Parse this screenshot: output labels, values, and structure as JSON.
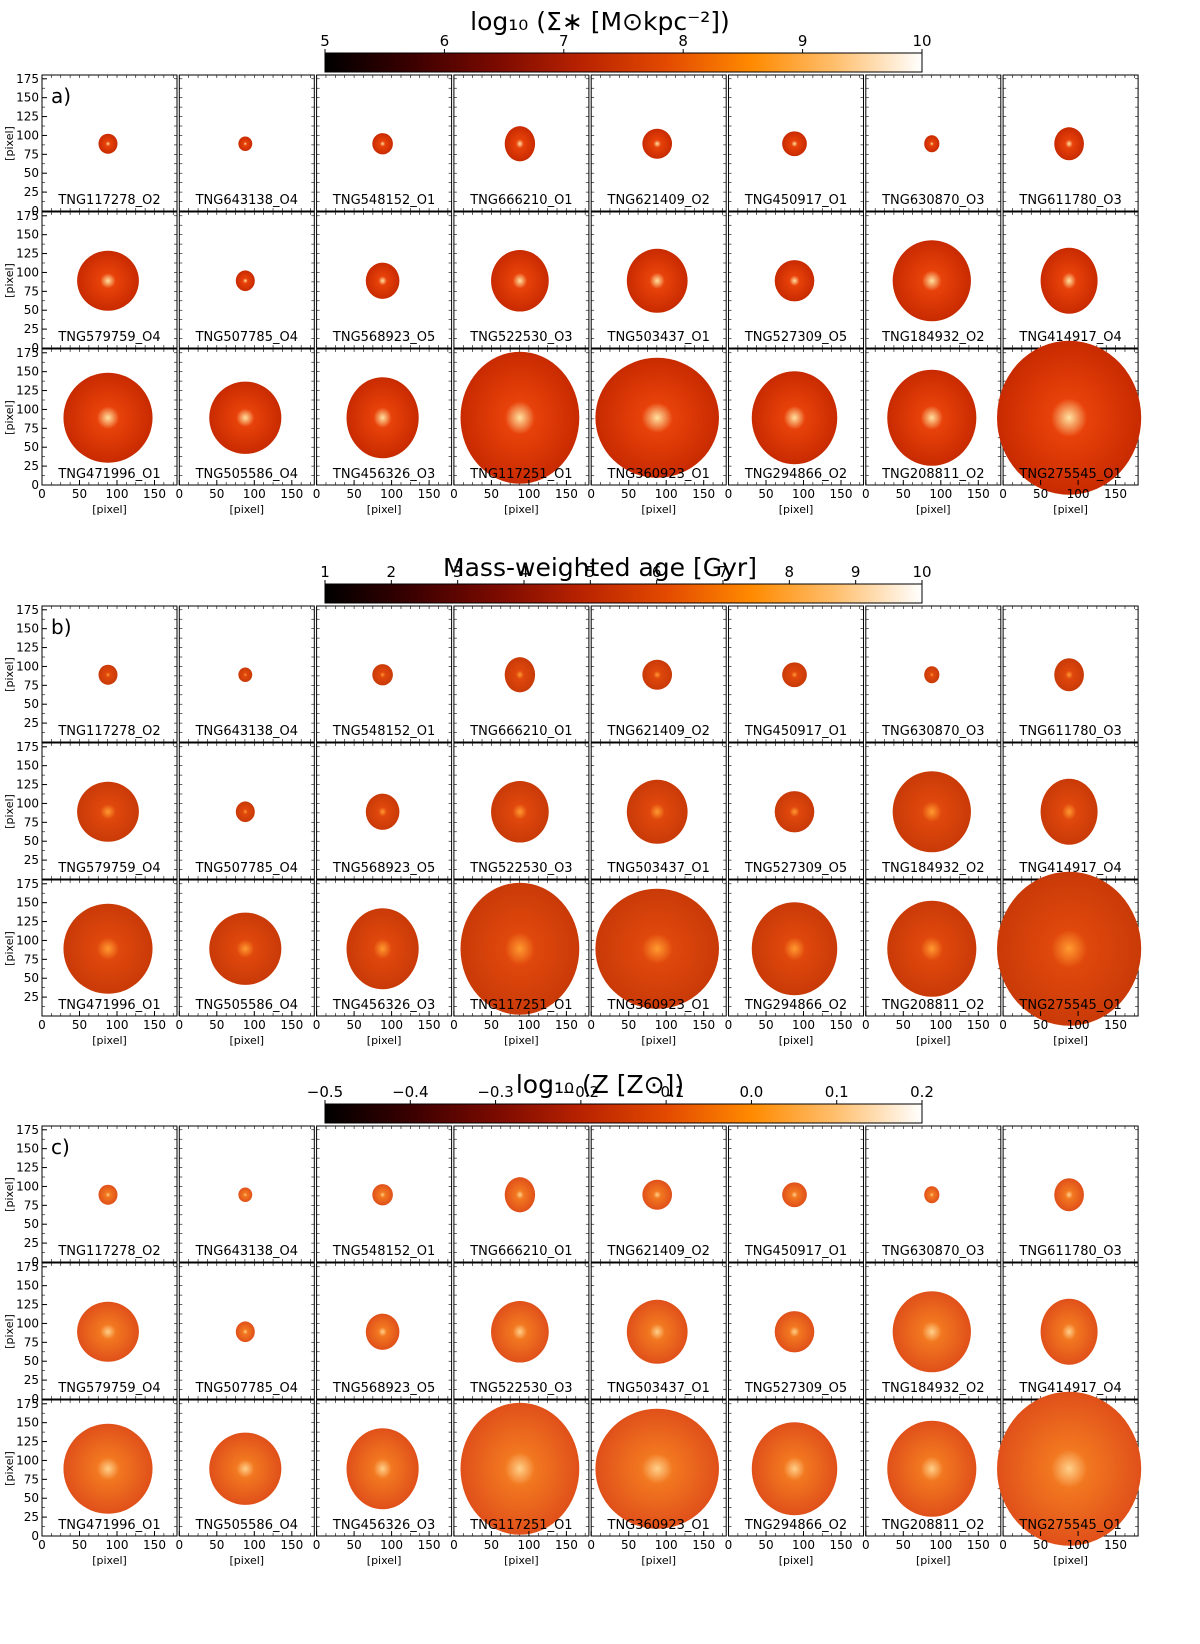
{
  "figure": {
    "galaxy_ids": [
      "TNG117278_O2",
      "TNG643138_O4",
      "TNG548152_O1",
      "TNG666210_O1",
      "TNG621409_O2",
      "TNG450917_O1",
      "TNG630870_O3",
      "TNG611780_O3",
      "TNG579759_O4",
      "TNG507785_O4",
      "TNG568923_O5",
      "TNG522530_O3",
      "TNG503437_O1",
      "TNG527309_O5",
      "TNG184932_O2",
      "TNG414917_O4",
      "TNG471996_O1",
      "TNG505586_O4",
      "TNG456326_O3",
      "TNG117251_O1",
      "TNG360923_O1",
      "TNG294866_O2",
      "TNG208811_O2",
      "TNG275545_O1"
    ],
    "grid": {
      "rows": 3,
      "cols": 8
    }
  },
  "chart_data": [
    {
      "type": "heatmap",
      "panel_label": "a)",
      "title": "log₁₀ (Σ∗ [M⊙kpc⁻²])",
      "colorbar": {
        "range": [
          5,
          10
        ],
        "ticks": [
          "5",
          "6",
          "7",
          "8",
          "9",
          "10"
        ],
        "colormap": "gist_heat"
      },
      "xlabel": "[pixel]",
      "ylabel": "[pixel]",
      "xlim": [
        0,
        180
      ],
      "ylim": [
        0,
        180
      ],
      "xticks": [
        "0",
        "50",
        "100",
        "150"
      ],
      "yticks": [
        "0",
        "25",
        "50",
        "75",
        "100",
        "125",
        "150",
        "175"
      ],
      "galaxy_sizes_px": [
        10,
        7,
        10,
        16,
        15,
        12,
        8,
        15,
        30,
        10,
        17,
        28,
        32,
        20,
        38,
        30,
        45,
        35,
        38,
        60,
        60,
        45,
        45,
        70
      ]
    },
    {
      "type": "heatmap",
      "panel_label": "b)",
      "title": "Mass-weighted age [Gyr]",
      "colorbar": {
        "range": [
          1,
          10
        ],
        "ticks": [
          "1",
          "2",
          "3",
          "4",
          "5",
          "6",
          "7",
          "8",
          "9",
          "10"
        ],
        "colormap": "gist_heat"
      },
      "xlabel": "[pixel]",
      "ylabel": "[pixel]",
      "xlim": [
        0,
        180
      ],
      "ylim": [
        0,
        180
      ],
      "xticks": [
        "0",
        "50",
        "100",
        "150"
      ],
      "yticks": [
        "25",
        "50",
        "75",
        "100",
        "125",
        "150",
        "175"
      ],
      "galaxy_sizes_px": [
        10,
        7,
        10,
        16,
        15,
        12,
        8,
        15,
        30,
        10,
        17,
        28,
        32,
        20,
        38,
        30,
        45,
        35,
        38,
        60,
        60,
        45,
        45,
        70
      ]
    },
    {
      "type": "heatmap",
      "panel_label": "c)",
      "title": "log₁₀ (Z [Z⊙])",
      "colorbar": {
        "range": [
          -0.5,
          0.2
        ],
        "ticks": [
          "−0.5",
          "−0.4",
          "−0.3",
          "−0.2",
          "−0.1",
          "0.0",
          "0.1",
          "0.2"
        ],
        "colormap": "gist_heat"
      },
      "xlabel": "[pixel]",
      "ylabel": "[pixel]",
      "xlim": [
        0,
        180
      ],
      "ylim": [
        0,
        180
      ],
      "xticks": [
        "0",
        "50",
        "100",
        "150"
      ],
      "yticks": [
        "0",
        "25",
        "50",
        "75",
        "100",
        "125",
        "150",
        "175"
      ],
      "galaxy_sizes_px": [
        10,
        7,
        10,
        16,
        15,
        12,
        8,
        15,
        30,
        10,
        17,
        28,
        32,
        20,
        38,
        30,
        45,
        35,
        38,
        60,
        60,
        45,
        45,
        70
      ]
    }
  ],
  "colors": {
    "cmap": [
      "#000000",
      "#3a0000",
      "#7a0a00",
      "#b82200",
      "#e34a00",
      "#ff8a00",
      "#ffc070",
      "#ffffff"
    ],
    "galaxy_a_core": "#ffe2a0",
    "galaxy_a_mid": "#e8420a",
    "galaxy_a_edge": "#c82a00",
    "galaxy_b_core": "#ff9a30",
    "galaxy_b_mid": "#e0480c",
    "galaxy_b_edge": "#c93a08",
    "galaxy_c_core": "#ffd08a",
    "galaxy_c_mid": "#f27820",
    "galaxy_c_edge": "#e0501a"
  }
}
